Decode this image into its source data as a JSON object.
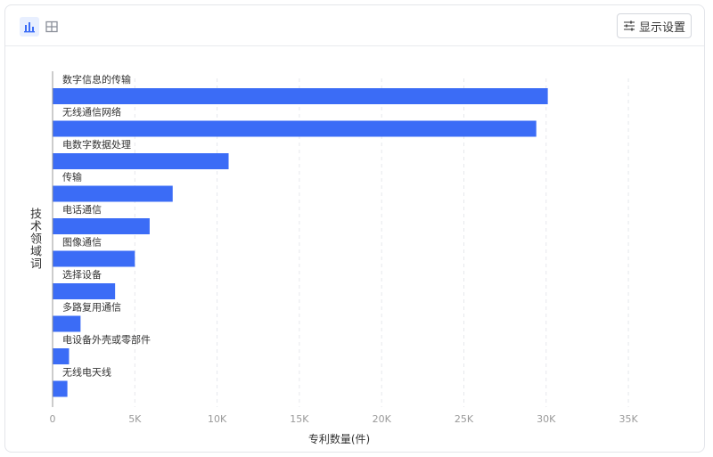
{
  "toolbar": {
    "view_buttons": [
      {
        "icon": "bar-chart-icon",
        "active": true
      },
      {
        "icon": "table-icon",
        "active": false
      }
    ],
    "settings_label": "显示设置",
    "settings_icon": "sliders-icon"
  },
  "colors": {
    "bar": "#3b6cf6",
    "grid": "#e6e8ec",
    "axis_text": "#999999",
    "label_text": "#333333"
  },
  "chart_data": {
    "type": "bar",
    "orientation": "horizontal",
    "title": "",
    "xlabel": "专利数量(件)",
    "ylabel": "技术领域词",
    "xlim": [
      0,
      37000
    ],
    "xticks": [
      0,
      5000,
      10000,
      15000,
      20000,
      25000,
      30000,
      35000
    ],
    "xtick_labels": [
      "0",
      "5K",
      "10K",
      "15K",
      "20K",
      "25K",
      "30K",
      "35K"
    ],
    "grid": true,
    "categories": [
      "数字信息的传输",
      "无线通信网络",
      "电数字数据处理",
      "传输",
      "电话通信",
      "图像通信",
      "选择设备",
      "多路复用通信",
      "电设备外壳或零部件",
      "无线电天线"
    ],
    "values": [
      30100,
      29400,
      10700,
      7300,
      5900,
      5000,
      3800,
      1700,
      1000,
      900
    ]
  }
}
